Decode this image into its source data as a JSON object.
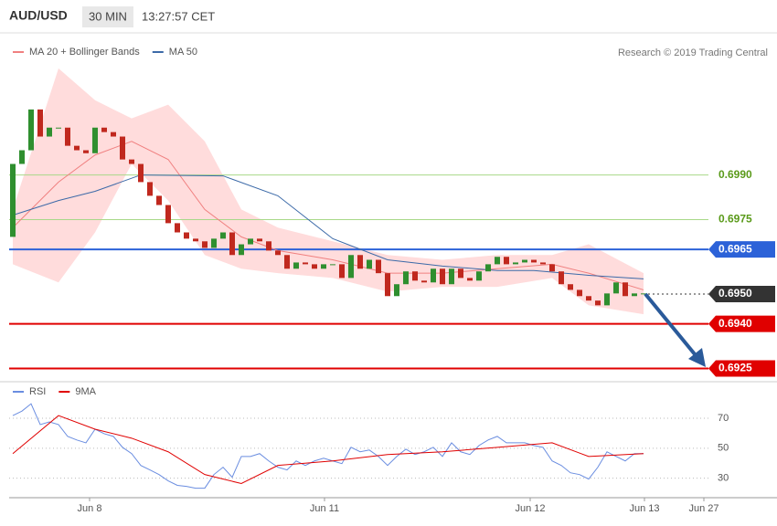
{
  "header": {
    "symbol": "AUD/USD",
    "interval": "30 MIN",
    "time": "13:27:57 CET"
  },
  "credit": "Research © 2019 Trading Central",
  "chart_data": [
    {
      "type": "candlestick",
      "up_color": "#2f8f2f",
      "down_color": "#c0281e",
      "open": [
        0.69692,
        0.69937,
        0.69983,
        0.7012,
        0.70029,
        0.70059,
        0.70059,
        0.69998,
        0.69983,
        0.69973,
        0.70059,
        0.70044,
        0.70029,
        0.69952,
        0.69937,
        0.69876,
        0.6983,
        0.69799,
        0.69738,
        0.69707,
        0.69686,
        0.69677,
        0.69655,
        0.69686,
        0.69707,
        0.69631,
        0.69667,
        0.69686,
        0.69677,
        0.69646,
        0.69631,
        0.69585,
        0.69606,
        0.696,
        0.69585,
        0.696,
        0.696,
        0.69554,
        0.69631,
        0.69585,
        0.69615,
        0.6957,
        0.69493,
        0.69533,
        0.69576,
        0.69545,
        0.69539,
        0.69585,
        0.69533,
        0.69585,
        0.69554,
        0.69545,
        0.69576,
        0.696,
        0.69625,
        0.696,
        0.69606,
        0.69615,
        0.69606,
        0.696,
        0.69576,
        0.69533,
        0.69514,
        0.69493,
        0.69478,
        0.69462,
        0.69502,
        0.69539,
        0.69493,
        0.69502
      ],
      "close": [
        0.69937,
        0.69983,
        0.7012,
        0.70029,
        0.70059,
        0.70059,
        0.69998,
        0.69983,
        0.69973,
        0.70059,
        0.70044,
        0.70029,
        0.69952,
        0.69937,
        0.69876,
        0.6983,
        0.69799,
        0.69738,
        0.69707,
        0.69686,
        0.69677,
        0.69655,
        0.69686,
        0.69707,
        0.69631,
        0.69667,
        0.69686,
        0.69677,
        0.69646,
        0.69631,
        0.69585,
        0.69606,
        0.696,
        0.69585,
        0.696,
        0.696,
        0.69554,
        0.69631,
        0.69585,
        0.69615,
        0.6957,
        0.69493,
        0.69533,
        0.69576,
        0.69545,
        0.69539,
        0.69585,
        0.69533,
        0.69585,
        0.69554,
        0.69545,
        0.69576,
        0.696,
        0.69625,
        0.696,
        0.69606,
        0.69615,
        0.69606,
        0.696,
        0.69576,
        0.69533,
        0.69514,
        0.69493,
        0.69478,
        0.69462,
        0.69502,
        0.69539,
        0.69493,
        0.69502,
        0.69502
      ],
      "series": [
        {
          "name": "MA 20 + Bollinger Bands",
          "color": "#f08080",
          "band_color": "#ffdcdc",
          "x": [
            0,
            5,
            9,
            13,
            17,
            21,
            25,
            29,
            35,
            41,
            47,
            53,
            59,
            63,
            69
          ],
          "values": [
            0.69723,
            0.69876,
            0.69967,
            0.70013,
            0.69952,
            0.69784,
            0.69692,
            0.69646,
            0.69615,
            0.6957,
            0.6957,
            0.69585,
            0.696,
            0.6957,
            0.69514
          ],
          "upper": [
            0.69784,
            0.70258,
            0.70151,
            0.7009,
            0.70136,
            0.70013,
            0.69784,
            0.69723,
            0.69677,
            0.69631,
            0.69615,
            0.69631,
            0.69631,
            0.69667,
            0.6957
          ],
          "lower": [
            0.696,
            0.69539,
            0.69707,
            0.69937,
            0.69814,
            0.69631,
            0.69585,
            0.6957,
            0.69554,
            0.69508,
            0.69524,
            0.69524,
            0.69554,
            0.69462,
            0.69432
          ]
        },
        {
          "name": "MA 50",
          "color": "#3c6aa8",
          "x": [
            0,
            5,
            9,
            14,
            23,
            29,
            35,
            41,
            47,
            53,
            57,
            63,
            69
          ],
          "values": [
            0.69765,
            0.69814,
            0.69845,
            0.699,
            0.69897,
            0.6983,
            0.69686,
            0.69615,
            0.69594,
            0.69579,
            0.69579,
            0.69563,
            0.69551
          ]
        }
      ],
      "levels": [
        {
          "value": 0.699,
          "label": "0.6990",
          "color": "#a8d888",
          "text_color": "#5a9a1a",
          "box": false,
          "style": "solid"
        },
        {
          "value": 0.6975,
          "label": "0.6975",
          "color": "#a8d888",
          "text_color": "#5a9a1a",
          "box": false,
          "style": "solid"
        },
        {
          "value": 0.6965,
          "label": "0.6965",
          "color": "#2c62d8",
          "text_color": "#ffffff",
          "box": true,
          "style": "solid"
        },
        {
          "value": 0.695,
          "label": "0.6950",
          "color": "#333333",
          "text_color": "#ffffff",
          "box": true,
          "style": "dotted"
        },
        {
          "value": 0.694,
          "label": "0.6940",
          "color": "#e00000",
          "text_color": "#ffffff",
          "box": true,
          "style": "solid"
        },
        {
          "value": 0.6925,
          "label": "0.6925",
          "color": "#e00000",
          "text_color": "#ffffff",
          "box": true,
          "style": "solid"
        }
      ],
      "xlim": [
        -0.4,
        83.6
      ],
      "ylim": [
        0.6923,
        0.70365
      ]
    },
    {
      "type": "line",
      "series": [
        {
          "name": "RSI",
          "color": "#6a8de0",
          "values": [
            71.8,
            74.8,
            79.7,
            65.8,
            67.6,
            65.8,
            57.9,
            55.5,
            53.6,
            62.7,
            59.7,
            57.9,
            50.6,
            46.4,
            38.5,
            35.5,
            32.4,
            28.2,
            25.2,
            24.5,
            23.3,
            23.3,
            32.4,
            37.3,
            30.6,
            44.5,
            44.5,
            46.4,
            41.5,
            37.3,
            35.5,
            41.5,
            38.5,
            41.5,
            43.3,
            41.5,
            39.7,
            50.6,
            47.6,
            48.8,
            44.5,
            38.5,
            44.5,
            49.4,
            45.8,
            47.6,
            50.6,
            44.5,
            53.6,
            47.6,
            45.8,
            51.8,
            55.5,
            57.9,
            53.6,
            53.6,
            53.6,
            51.8,
            50.6,
            41.5,
            38.5,
            33.6,
            32.4,
            29.4,
            37.3,
            47.6,
            44.5,
            41.5,
            46.4,
            46.4
          ]
        },
        {
          "name": "9MA",
          "color": "#e00000",
          "x": [
            0,
            5,
            9,
            13,
            17,
            21,
            25,
            29,
            35,
            41,
            47,
            53,
            59,
            63,
            69
          ],
          "values": [
            46.4,
            71.8,
            62.7,
            56.7,
            47.6,
            32.4,
            26.4,
            38.5,
            41.5,
            45.8,
            47.6,
            50.6,
            53.6,
            44.5,
            46.4
          ]
        }
      ],
      "xlim": [
        -0.4,
        83.6
      ],
      "ylim": [
        20,
        81
      ],
      "yticks": [
        70,
        50,
        30
      ],
      "grid": true,
      "xticks": [
        {
          "value": 8.4,
          "label": "Jun 8"
        },
        {
          "value": 34.1,
          "label": "Jun 11"
        },
        {
          "value": 56.6,
          "label": "Jun 12"
        },
        {
          "value": 69.1,
          "label": "Jun 13"
        },
        {
          "value": 75.6,
          "label": "Jun 27"
        }
      ]
    }
  ]
}
